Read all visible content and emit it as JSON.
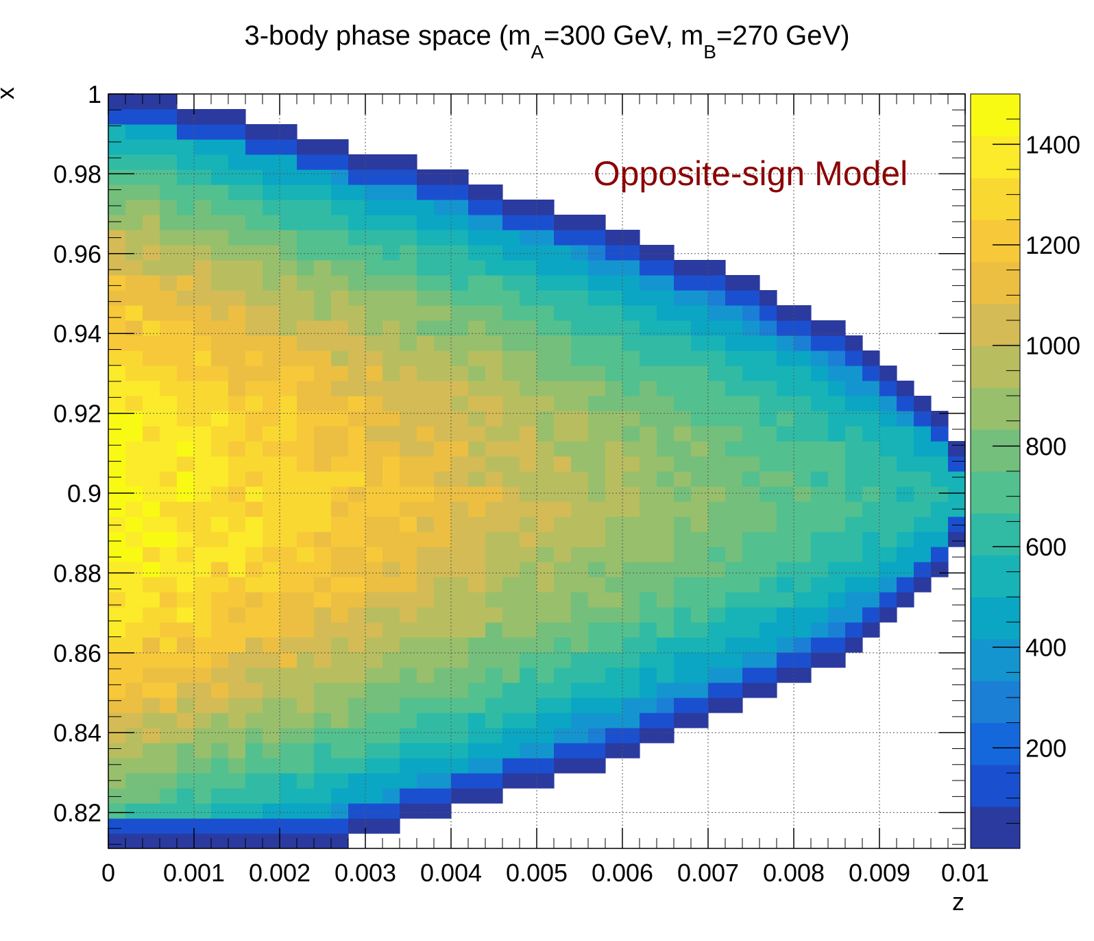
{
  "chart_data": {
    "type": "heatmap",
    "title": {
      "prefix": "3-body phase space (m",
      "sub_a": "A",
      "mid": "=300 GeV, m",
      "sub_b": "B",
      "suffix": "=270 GeV)"
    },
    "xlabel": "z",
    "ylabel": "x",
    "xlim": [
      0,
      0.01
    ],
    "ylim": [
      0.811,
      1.0
    ],
    "x_ticks": [
      "0",
      "0.001",
      "0.002",
      "0.003",
      "0.004",
      "0.005",
      "0.006",
      "0.007",
      "0.008",
      "0.009",
      "0.01"
    ],
    "y_ticks": [
      "0.82",
      "0.84",
      "0.86",
      "0.88",
      "0.9",
      "0.92",
      "0.94",
      "0.96",
      "0.98",
      "1"
    ],
    "x_bins": 50,
    "y_bins": 50,
    "zlim": [
      0,
      1500
    ],
    "z_ticks": [
      "200",
      "400",
      "600",
      "800",
      "1000",
      "1200",
      "1400"
    ],
    "grid": true,
    "annotation": "Opposite-sign Model",
    "annotation_color": "#8b0000",
    "peak": {
      "x": 0.0,
      "y": 0.9,
      "value": 1450
    },
    "boundary_note": "Filled region bounded by kinematic limits; tip at z=0.01, x≈0.9",
    "palette": [
      "#2b3a9e",
      "#1a50d0",
      "#1567dc",
      "#1b7fd6",
      "#1595cf",
      "#0aa6c4",
      "#17b3b6",
      "#32bba4",
      "#52c08f",
      "#75bf7c",
      "#98bf6c",
      "#b8be5f",
      "#d4bb55",
      "#ecbf42",
      "#f7c93a",
      "#fad832",
      "#fbeb2a",
      "#f9fa14"
    ]
  }
}
